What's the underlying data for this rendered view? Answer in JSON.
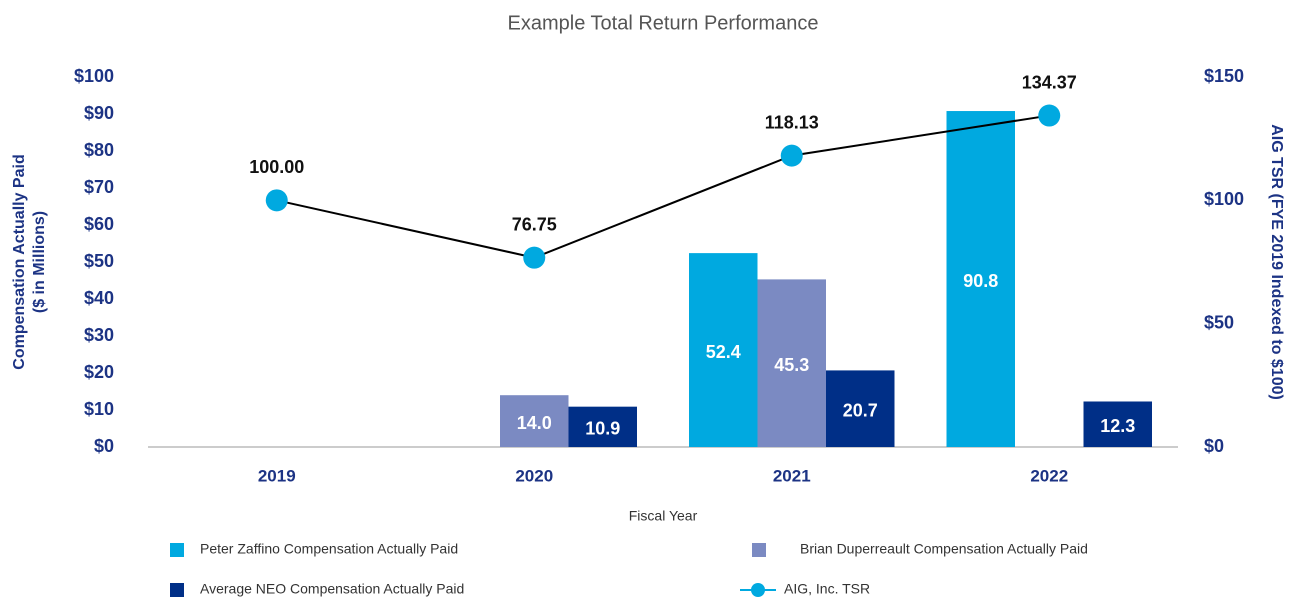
{
  "chart_data": {
    "type": "bar",
    "title": "Example Total Return Performance",
    "xlabel": "Fiscal Year",
    "ylabel": [
      "Compensation Actually Paid",
      "($ in Millions)"
    ],
    "y2label": "AIG TSR (FYE 2019 Indexed to $100)",
    "categories": [
      "2019",
      "2020",
      "2021",
      "2022"
    ],
    "ylim": [
      0,
      100
    ],
    "yticks": [
      {
        "value": 0,
        "label": "$0"
      },
      {
        "value": 10,
        "label": "$10"
      },
      {
        "value": 20,
        "label": "$20"
      },
      {
        "value": 30,
        "label": "$30"
      },
      {
        "value": 40,
        "label": "$40"
      },
      {
        "value": 50,
        "label": "$50"
      },
      {
        "value": 60,
        "label": "$60"
      },
      {
        "value": 70,
        "label": "$70"
      },
      {
        "value": 80,
        "label": "$80"
      },
      {
        "value": 90,
        "label": "$90"
      },
      {
        "value": 100,
        "label": "$100"
      }
    ],
    "y2lim": [
      0,
      150
    ],
    "y2ticks": [
      {
        "value": 0,
        "label": "$0"
      },
      {
        "value": 50,
        "label": "$50"
      },
      {
        "value": 100,
        "label": "$100"
      },
      {
        "value": 150,
        "label": "$150"
      }
    ],
    "grid": false,
    "series": [
      {
        "name": "Peter Zaffino Compensation Actually Paid",
        "type": "bar",
        "color": "#00a9e0",
        "values": [
          null,
          null,
          52.4,
          90.8
        ],
        "value_labels": [
          null,
          null,
          "52.4",
          "90.8"
        ]
      },
      {
        "name": "Brian Duperreault Compensation Actually Paid",
        "type": "bar",
        "color": "#7b8ac2",
        "values": [
          null,
          14.0,
          45.3,
          null
        ],
        "value_labels": [
          null,
          "14.0",
          "45.3",
          null
        ]
      },
      {
        "name": "Average NEO Compensation Actually Paid",
        "type": "bar",
        "color": "#002f87",
        "values": [
          null,
          10.9,
          20.7,
          12.3
        ],
        "value_labels": [
          null,
          "10.9",
          "20.7",
          "12.3"
        ]
      },
      {
        "name": "AIG, Inc. TSR",
        "type": "line",
        "axis": "y2",
        "color": "#00a9e0",
        "line_color": "#000000",
        "values": [
          100.0,
          76.75,
          118.13,
          134.37
        ],
        "value_labels": [
          "100.00",
          "76.75",
          "118.13",
          "134.37"
        ]
      }
    ]
  }
}
